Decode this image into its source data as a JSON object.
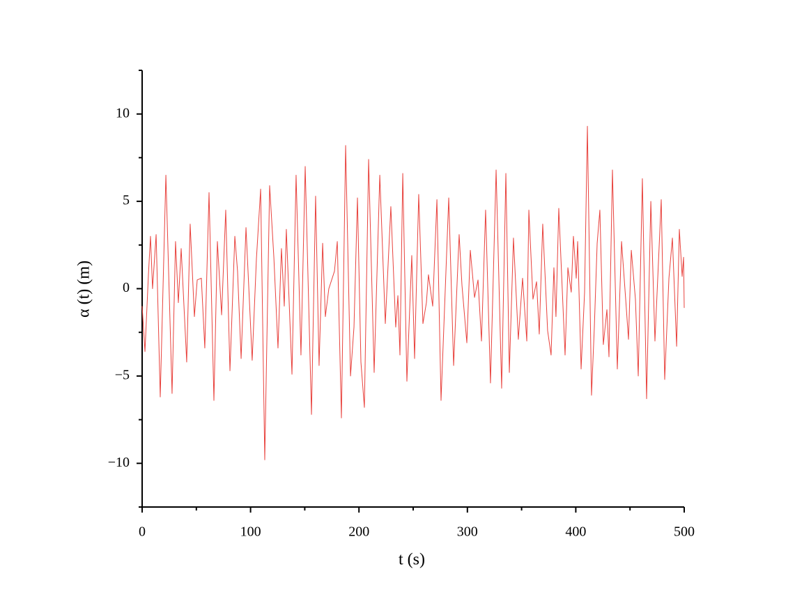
{
  "chart_data": {
    "type": "line",
    "x_label": "t (s)",
    "y_label": "α (t) (m)",
    "x": [
      0,
      2.6,
      5.8,
      7.7,
      9.6,
      12.9,
      16.7,
      21.9,
      27.6,
      30.8,
      33.4,
      36.0,
      41.1,
      44.3,
      48.2,
      50.8,
      54.6,
      57.8,
      61.7,
      66.2,
      69.4,
      73.3,
      77.1,
      81.0,
      85.5,
      88.0,
      91.3,
      95.8,
      101.5,
      105.4,
      109.3,
      113.1,
      117.6,
      121.5,
      125.3,
      128.5,
      131.1,
      133.0,
      138.2,
      142.0,
      146.5,
      150.4,
      156.2,
      160.0,
      163.2,
      166.5,
      169.0,
      172.2,
      177.4,
      180.0,
      183.8,
      187.7,
      192.2,
      195.4,
      198.6,
      201.8,
      205.0,
      208.9,
      214.0,
      219.2,
      224.3,
      229.4,
      233.9,
      235.9,
      237.8,
      240.4,
      244.2,
      248.7,
      251.3,
      255.1,
      259.0,
      262.2,
      264.1,
      268.0,
      271.9,
      275.7,
      282.8,
      287.3,
      292.4,
      295.0,
      299.5,
      302.7,
      306.6,
      309.8,
      313.0,
      316.8,
      321.3,
      326.5,
      331.6,
      335.5,
      338.7,
      342.5,
      347.0,
      350.9,
      354.8,
      356.7,
      360.5,
      363.8,
      366.3,
      369.5,
      374.0,
      377.2,
      379.8,
      381.7,
      384.3,
      390.1,
      392.7,
      395.8,
      397.8,
      400.4,
      401.7,
      404.9,
      408.1,
      410.7,
      414.5,
      417.1,
      419.7,
      422.2,
      425.4,
      428.7,
      430.6,
      433.8,
      438.3,
      442.2,
      446.0,
      448.6,
      451.2,
      455.0,
      457.6,
      461.4,
      465.3,
      469.2,
      473.0,
      478.8,
      482.0,
      485.9,
      489.1,
      493.0,
      495.5,
      498.1,
      499.4,
      500
    ],
    "series": [
      {
        "color": "#e8413c",
        "values": [
          -1.0,
          -3.6,
          0.8,
          3.0,
          0,
          3.1,
          -6.2,
          6.5,
          -6.0,
          2.7,
          -0.8,
          2.3,
          -4.2,
          3.7,
          -1.6,
          0.5,
          0.6,
          -3.4,
          5.5,
          -6.4,
          2.7,
          -1.5,
          4.5,
          -4.7,
          3.0,
          1.0,
          -4.0,
          3.5,
          -4.1,
          1.7,
          5.7,
          -9.8,
          5.9,
          1.8,
          -3.4,
          2.3,
          -1.0,
          3.4,
          -4.9,
          6.5,
          -3.8,
          7.0,
          -7.2,
          5.3,
          -4.4,
          2.6,
          -1.6,
          0,
          1.0,
          2.7,
          -7.4,
          8.2,
          -5.0,
          -2.2,
          5.2,
          -4.2,
          -6.8,
          7.4,
          -4.8,
          6.5,
          -2.0,
          4.7,
          -2.2,
          -0.4,
          -3.8,
          6.6,
          -5.3,
          1.9,
          -4.0,
          5.4,
          -2.0,
          -0.8,
          0.8,
          -1.0,
          5.1,
          -6.4,
          5.2,
          -4.4,
          3.1,
          0.2,
          -3.1,
          2.2,
          -0.5,
          0.5,
          -3.0,
          4.5,
          -5.4,
          6.8,
          -5.7,
          6.6,
          -4.8,
          2.9,
          -2.9,
          0.6,
          -3.0,
          4.5,
          -0.6,
          0.4,
          -2.6,
          3.7,
          -2.4,
          -3.8,
          1.2,
          -1.6,
          4.6,
          -3.8,
          1.2,
          -0.2,
          3.0,
          0.6,
          2.7,
          -4.6,
          -0.2,
          9.3,
          -6.1,
          -2.2,
          2.6,
          4.5,
          -3.2,
          -1.2,
          -3.9,
          6.8,
          -4.6,
          2.7,
          -0.6,
          -2.9,
          2.2,
          -0.6,
          -5.0,
          6.3,
          -6.3,
          5.0,
          -3.0,
          5.1,
          -5.2,
          0.6,
          2.9,
          -3.3,
          3.4,
          0.7,
          1.8,
          -1.1
        ]
      }
    ],
    "xlim": [
      0,
      500
    ],
    "xticks": [
      0,
      100,
      200,
      300,
      400,
      500
    ],
    "xminorticks": [
      50,
      150,
      250,
      350,
      450
    ],
    "ylim": [
      -12.5,
      12.5
    ],
    "yticks": [
      {
        "value": -10,
        "label": "−10"
      },
      {
        "value": -5,
        "label": "−5"
      },
      0,
      5,
      10
    ],
    "yminorticks": [
      -12.5,
      -7.5,
      -2.5,
      2.5,
      7.5,
      12.5
    ]
  }
}
